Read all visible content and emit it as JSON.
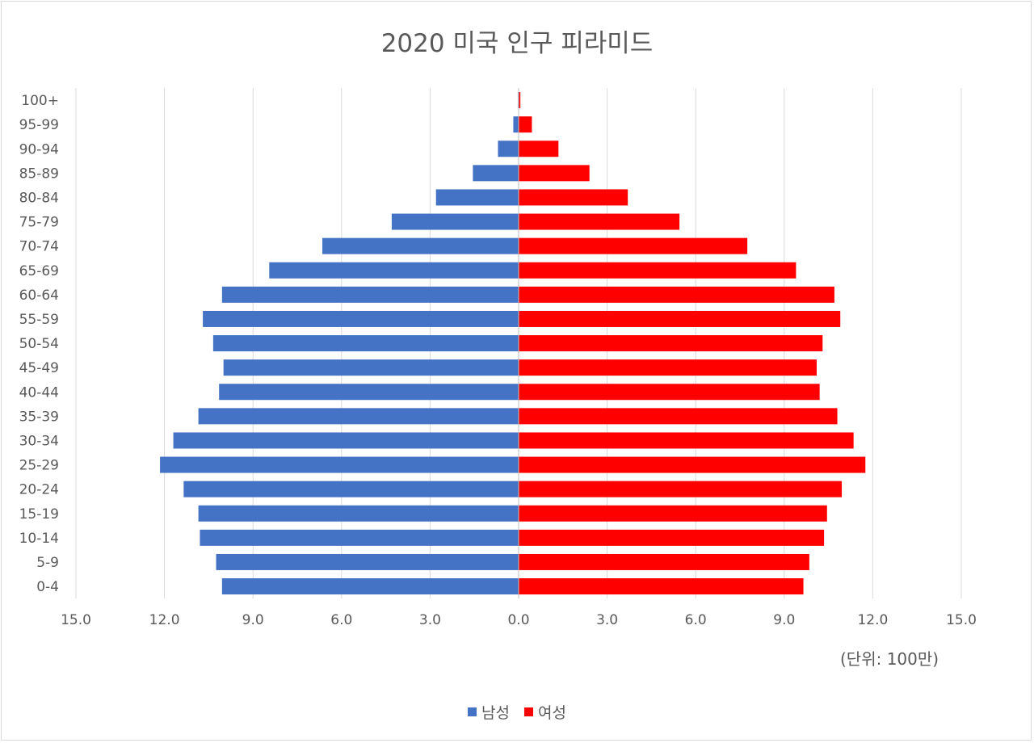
{
  "chart_data": {
    "type": "bar",
    "orientation": "horizontal",
    "title": "2020 미국 인구 피라미드",
    "unit_note": "(단위: 100만)",
    "categories": [
      "0-4",
      "5-9",
      "10-14",
      "15-19",
      "20-24",
      "25-29",
      "30-34",
      "35-39",
      "40-44",
      "45-49",
      "50-54",
      "55-59",
      "60-64",
      "65-69",
      "70-74",
      "75-79",
      "80-84",
      "85-89",
      "90-94",
      "95-99",
      "100+"
    ],
    "series": [
      {
        "name": "남성",
        "color": "#4472C4",
        "values": [
          10.05,
          10.25,
          10.8,
          10.85,
          11.35,
          12.15,
          11.7,
          10.85,
          10.15,
          10.0,
          10.35,
          10.7,
          10.05,
          8.45,
          6.65,
          4.3,
          2.8,
          1.55,
          0.7,
          0.18,
          0.02
        ]
      },
      {
        "name": "여성",
        "color": "#FF0000",
        "values": [
          9.65,
          9.85,
          10.35,
          10.45,
          10.95,
          11.75,
          11.35,
          10.8,
          10.2,
          10.1,
          10.3,
          10.9,
          10.7,
          9.4,
          7.75,
          5.45,
          3.7,
          2.4,
          1.35,
          0.45,
          0.06
        ]
      }
    ],
    "x_ticks": [
      "15.0",
      "12.0",
      "9.0",
      "6.0",
      "3.0",
      "0.0",
      "3.0",
      "6.0",
      "9.0",
      "12.0",
      "15.0"
    ],
    "xlim": [
      -15,
      15
    ],
    "grid": "vertical",
    "legend": "bottom"
  }
}
